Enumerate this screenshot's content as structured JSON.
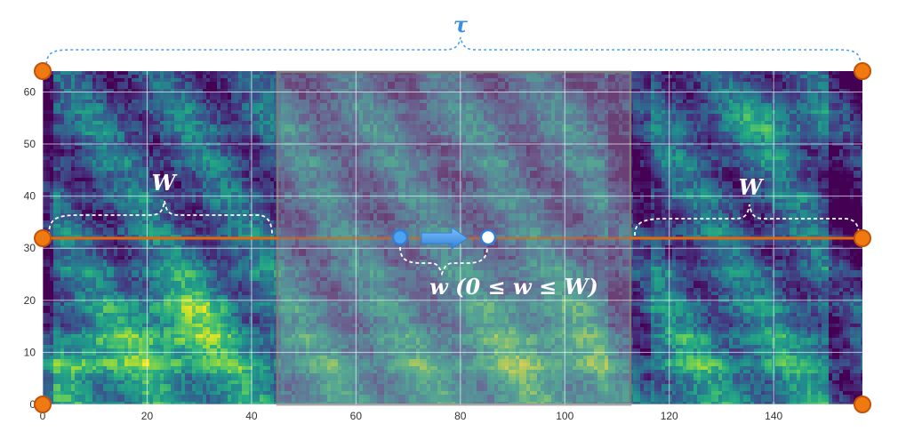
{
  "figure": {
    "tau_label": "τ",
    "w_left_label": "W",
    "w_right_label": "W",
    "warp_label": "w (0 ≤ w ≤ W)"
  },
  "axes": {
    "x_ticks": [
      "0",
      "20",
      "40",
      "60",
      "80",
      "100",
      "120",
      "140"
    ],
    "y_ticks": [
      "0",
      "10",
      "20",
      "30",
      "40",
      "50",
      "60"
    ],
    "x_range": [
      0,
      157
    ],
    "y_range": [
      0,
      64
    ],
    "grid": true
  },
  "spectrogram": {
    "colormap": "viridis",
    "time_frames": 157,
    "mel_bins": 64
  },
  "warp": {
    "center_line_y": 32,
    "window_W": 44,
    "masked_region_x": [
      45,
      112
    ],
    "source_point_x": 68,
    "target_point_x": 85
  },
  "colors": {
    "accent_orange": "#e8660a",
    "accent_blue": "#3a8de0",
    "grid": "#ffffff",
    "mask_border": "#7a7a7a"
  }
}
